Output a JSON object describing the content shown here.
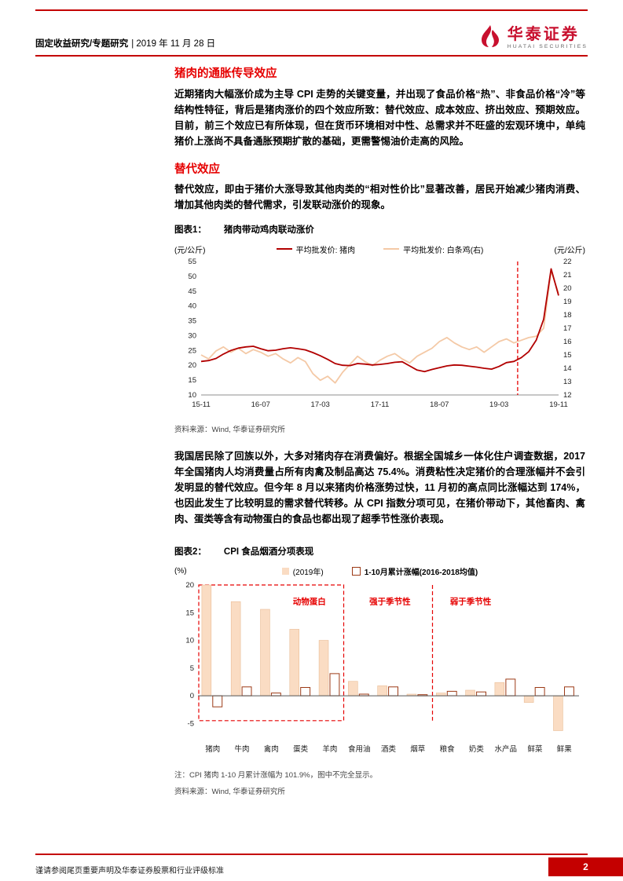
{
  "header": {
    "category": "固定收益研究/专题研究",
    "date": "| 2019 年 11 月 28 日",
    "brand": "华泰证券",
    "brand_en": "HUATAI SECURITIES"
  },
  "section_intro": {
    "title": "猪肉的通胀传导效应",
    "body": "近期猪肉大幅涨价成为主导 CPI 走势的关键变量，并出现了食品价格“热”、非食品价格“冷”等结构性特征，背后是猪肉涨价的四个效应所致：替代效应、成本效应、挤出效应、预期效应。目前，前三个效应已有所体现，但在货币环境相对中性、总需求并不旺盛的宏观环境中，单纯猪价上涨尚不具备通胀预期扩散的基础，更需警惕油价走高的风险。"
  },
  "section_sub": {
    "title": "替代效应",
    "body": "替代效应，即由于猪价大涨导致其他肉类的“相对性价比”显著改善，居民开始减少猪肉消费、增加其他肉类的替代需求，引发联动涨价的现象。"
  },
  "figure1": {
    "label": "图表1：",
    "title": "猪肉带动鸡肉联动涨价",
    "unit_left": "(元/公斤)",
    "unit_right": "(元/公斤)",
    "source": "资料来源：Wind, 华泰证券研究所",
    "chart_data": {
      "type": "line",
      "x_tick_labels": [
        "15-11",
        "16-07",
        "17-03",
        "17-11",
        "18-07",
        "19-03",
        "19-11"
      ],
      "x_tick_indices": [
        0,
        8,
        16,
        24,
        32,
        40,
        48
      ],
      "left_axis": {
        "min": 10,
        "max": 55,
        "step": 5
      },
      "right_axis": {
        "min": 12,
        "max": 22,
        "step": 1
      },
      "vline_index": 42.5,
      "vline_color": "#e60000",
      "series": [
        {
          "name": "平均批发价: 猪肉",
          "axis": "left",
          "color": "#b20000",
          "values": [
            21.3,
            21.6,
            22.3,
            23.8,
            25.0,
            25.8,
            26.2,
            26.4,
            25.6,
            24.9,
            25.1,
            25.6,
            25.9,
            25.6,
            25.2,
            24.3,
            23.2,
            22.0,
            20.6,
            20.0,
            19.9,
            20.6,
            20.4,
            20.1,
            20.3,
            20.6,
            21.0,
            21.2,
            19.8,
            18.4,
            17.9,
            18.6,
            19.2,
            19.8,
            20.1,
            20.0,
            19.7,
            19.4,
            19.0,
            18.7,
            19.6,
            20.9,
            21.3,
            22.6,
            24.6,
            28.5,
            35.5,
            52.5,
            43.5
          ]
        },
        {
          "name": "平均批发价: 白条鸡(右)",
          "axis": "right",
          "color": "#f4c9a6",
          "values": [
            15.0,
            14.7,
            15.3,
            15.6,
            15.2,
            15.5,
            15.1,
            15.4,
            15.2,
            14.9,
            15.1,
            14.7,
            14.4,
            14.8,
            14.5,
            13.6,
            13.1,
            13.4,
            12.9,
            13.7,
            14.3,
            14.9,
            14.5,
            14.2,
            14.6,
            14.9,
            15.1,
            14.7,
            14.4,
            14.9,
            15.2,
            15.5,
            16.0,
            16.3,
            15.9,
            15.6,
            15.4,
            15.6,
            15.2,
            15.6,
            16.0,
            16.2,
            15.9,
            16.1,
            16.3,
            16.4,
            17.0,
            21.3,
            19.6
          ]
        }
      ]
    }
  },
  "paragraph_consumption": "我国居民除了回族以外，大多对猪肉存在消费偏好。根据全国城乡一体化住户调查数据，2017 年全国猪肉人均消费量占所有肉禽及制品高达 75.4%。消费粘性决定猪价的合理涨幅并不会引发明显的替代效应。但今年 8 月以来猪肉价格涨势过快，11 月初的高点同比涨幅达到 174%，也因此发生了比较明显的需求替代转移。从 CPI 指数分项可见，在猪价带动下，其他畜肉、禽肉、蛋类等含有动物蛋白的食品也都出现了超季节性涨价表现。",
  "figure2": {
    "label": "图表2：",
    "title": "CPI 食品烟酒分项表现",
    "unit_y": "(%)",
    "note": "注：CPI 猪肉 1-10 月累计涨幅为 101.9%，图中不完全显示。",
    "source": "资料来源：Wind, 华泰证券研究所",
    "chart_data": {
      "type": "bar",
      "categories": [
        "猪肉",
        "牛肉",
        "禽肉",
        "蛋类",
        "羊肉",
        "食用油",
        "酒类",
        "烟草",
        "粮食",
        "奶类",
        "水产品",
        "鲜菜",
        "鲜果"
      ],
      "ylim": [
        -7.5,
        20
      ],
      "y_ticks": [
        20,
        15,
        10,
        5,
        0,
        -5
      ],
      "series": [
        {
          "name": "(2019年)",
          "style": "filled",
          "color": "#fadcc3",
          "edge": "#e9bd97",
          "values": [
            101.9,
            17.0,
            15.6,
            12.0,
            10.0,
            2.6,
            1.8,
            0.3,
            0.5,
            1.0,
            2.4,
            -1.2,
            -6.3
          ]
        },
        {
          "name": "1-10月累计涨幅(2016-2018均值)",
          "style": "outlined",
          "color": "#9c3a16",
          "values": [
            -2.0,
            1.6,
            0.5,
            1.5,
            4.0,
            0.3,
            1.6,
            0.2,
            0.8,
            0.7,
            3.0,
            1.5,
            1.6
          ]
        }
      ],
      "annotations": [
        {
          "text": "动物蛋白",
          "cat_x": 3.8,
          "y": 16.5
        },
        {
          "text": "强于季节性",
          "cat_x": 6.55,
          "y": 16.5
        },
        {
          "text": "弱于季节性",
          "cat_x": 9.3,
          "y": 16.5
        }
      ],
      "group_box": {
        "from": 0,
        "to": 5,
        "top": 20,
        "bottom": -4.5
      },
      "divider_after": 8,
      "annotation_color": "#e60000"
    }
  },
  "footer": {
    "disclaimer": "谨请参阅尾页重要声明及华泰证券股票和行业评级标准",
    "page_number": "2"
  }
}
